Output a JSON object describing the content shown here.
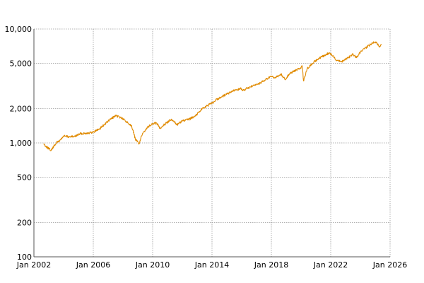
{
  "chart_data": {
    "type": "line",
    "title": "",
    "xlabel": "",
    "ylabel": "",
    "y_scale": "log",
    "xlim": [
      "2002-01",
      "2026-01"
    ],
    "ylim": [
      100,
      10000
    ],
    "grid": true,
    "legend": "none",
    "x_ticks": [
      {
        "date": "2002-01",
        "label": "Jan 2002"
      },
      {
        "date": "2006-01",
        "label": "Jan 2006"
      },
      {
        "date": "2010-01",
        "label": "Jan 2010"
      },
      {
        "date": "2014-01",
        "label": "Jan 2014"
      },
      {
        "date": "2018-01",
        "label": "Jan 2018"
      },
      {
        "date": "2022-01",
        "label": "Jan 2022"
      },
      {
        "date": "2026-01",
        "label": "Jan 2026"
      }
    ],
    "y_ticks": [
      {
        "value": 100,
        "label": "100"
      },
      {
        "value": 200,
        "label": "200"
      },
      {
        "value": 500,
        "label": "500"
      },
      {
        "value": 1000,
        "label": "1,000"
      },
      {
        "value": 2000,
        "label": "2,000"
      },
      {
        "value": 5000,
        "label": "5,000"
      },
      {
        "value": 10000,
        "label": "10,000"
      }
    ],
    "series": [
      {
        "color": "#e08a00",
        "points": [
          [
            "2002-09",
            980
          ],
          [
            "2002-11",
            930
          ],
          [
            "2003-01",
            890
          ],
          [
            "2003-03",
            860
          ],
          [
            "2003-05",
            930
          ],
          [
            "2003-07",
            1000
          ],
          [
            "2003-10",
            1050
          ],
          [
            "2004-01",
            1150
          ],
          [
            "2004-06",
            1130
          ],
          [
            "2004-10",
            1140
          ],
          [
            "2005-02",
            1200
          ],
          [
            "2005-07",
            1220
          ],
          [
            "2005-12",
            1230
          ],
          [
            "2006-06",
            1330
          ],
          [
            "2006-10",
            1450
          ],
          [
            "2007-01",
            1550
          ],
          [
            "2007-04",
            1650
          ],
          [
            "2007-07",
            1720
          ],
          [
            "2007-10",
            1700
          ],
          [
            "2008-01",
            1620
          ],
          [
            "2008-05",
            1500
          ],
          [
            "2008-08",
            1420
          ],
          [
            "2008-11",
            1080
          ],
          [
            "2009-02",
            980
          ],
          [
            "2009-04",
            1150
          ],
          [
            "2009-08",
            1350
          ],
          [
            "2009-12",
            1450
          ],
          [
            "2010-04",
            1500
          ],
          [
            "2010-07",
            1350
          ],
          [
            "2010-12",
            1500
          ],
          [
            "2011-04",
            1600
          ],
          [
            "2011-09",
            1450
          ],
          [
            "2012-01",
            1560
          ],
          [
            "2012-06",
            1600
          ],
          [
            "2012-12",
            1750
          ],
          [
            "2013-05",
            2000
          ],
          [
            "2013-12",
            2200
          ],
          [
            "2014-06",
            2450
          ],
          [
            "2014-12",
            2650
          ],
          [
            "2015-06",
            2850
          ],
          [
            "2015-12",
            3000
          ],
          [
            "2016-02",
            2900
          ],
          [
            "2016-08",
            3100
          ],
          [
            "2016-12",
            3200
          ],
          [
            "2017-06",
            3450
          ],
          [
            "2018-01",
            3850
          ],
          [
            "2018-03",
            3700
          ],
          [
            "2018-09",
            4000
          ],
          [
            "2018-12",
            3600
          ],
          [
            "2019-04",
            4100
          ],
          [
            "2019-12",
            4500
          ],
          [
            "2020-02",
            4700
          ],
          [
            "2020-03",
            3500
          ],
          [
            "2020-06",
            4500
          ],
          [
            "2020-12",
            5200
          ],
          [
            "2021-06",
            5700
          ],
          [
            "2021-12",
            6200
          ],
          [
            "2022-06",
            5300
          ],
          [
            "2022-10",
            5200
          ],
          [
            "2023-03",
            5600
          ],
          [
            "2023-07",
            6000
          ],
          [
            "2023-10",
            5600
          ],
          [
            "2024-01",
            6300
          ],
          [
            "2024-06",
            6900
          ],
          [
            "2024-11",
            7600
          ],
          [
            "2025-02",
            7700
          ],
          [
            "2025-04",
            7000
          ],
          [
            "2025-06",
            7300
          ]
        ]
      }
    ]
  }
}
